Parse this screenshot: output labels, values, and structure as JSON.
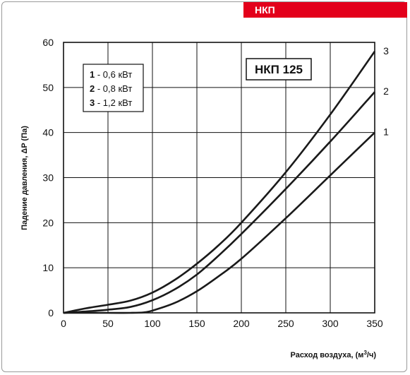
{
  "header": {
    "badge": "НКП"
  },
  "colors": {
    "accent": "#e3001b",
    "curve": "#1a1a1a",
    "grid": "#111111"
  },
  "chart_data": {
    "type": "line",
    "title": "НКП 125",
    "xlabel": "Расход воздуха, (м³/ч)",
    "ylabel": "Падение давления, ΔP (Па)",
    "xlim": [
      0,
      350
    ],
    "ylim": [
      0,
      60
    ],
    "xticks": [
      0,
      50,
      100,
      150,
      200,
      250,
      300,
      350
    ],
    "yticks": [
      0,
      10,
      20,
      30,
      40,
      50,
      60
    ],
    "grid": true,
    "legend_position": "top-left",
    "legend": [
      {
        "num": "1",
        "text": " - 0,6 кВт"
      },
      {
        "num": "2",
        "text": " - 0,8 кВт"
      },
      {
        "num": "3",
        "text": " - 1,2 кВт"
      }
    ],
    "series": [
      {
        "name": "1",
        "x": [
          0,
          50,
          75,
          90,
          100,
          125,
          150,
          175,
          200,
          250,
          300,
          350
        ],
        "y": [
          0,
          0,
          0,
          0.1,
          0.5,
          2.2,
          4.8,
          8.2,
          12,
          21,
          30.5,
          40
        ]
      },
      {
        "name": "2",
        "x": [
          0,
          25,
          50,
          75,
          100,
          125,
          150,
          175,
          200,
          250,
          300,
          350
        ],
        "y": [
          0,
          0.3,
          0.7,
          1.3,
          2.8,
          5.2,
          8.5,
          12.8,
          17.5,
          27.5,
          38,
          49
        ]
      },
      {
        "name": "3",
        "x": [
          0,
          25,
          50,
          75,
          100,
          125,
          150,
          175,
          200,
          250,
          300,
          350
        ],
        "y": [
          0,
          1.0,
          1.8,
          2.7,
          4.5,
          7.3,
          10.9,
          15.1,
          20,
          31.2,
          44,
          58
        ]
      }
    ]
  }
}
